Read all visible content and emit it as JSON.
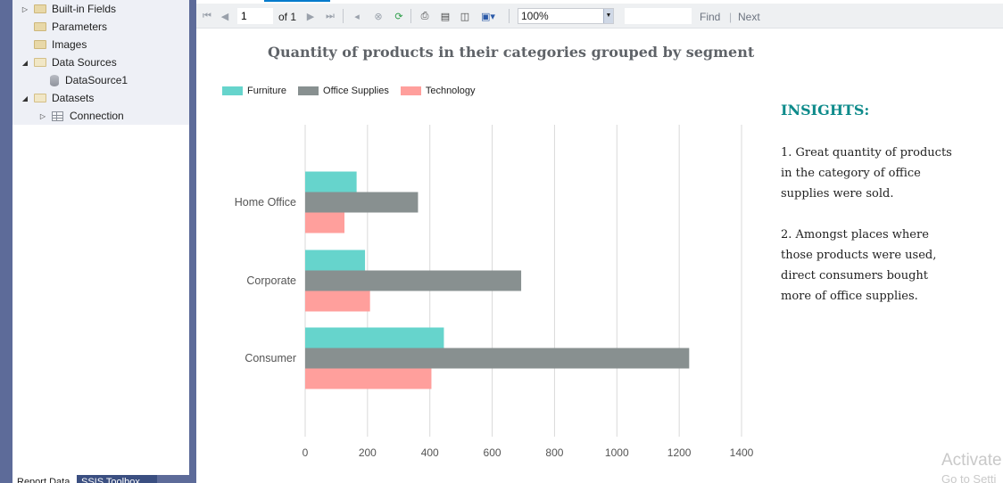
{
  "report_data_panel": {
    "items": [
      {
        "label": "Built-in Fields",
        "type": "folder",
        "expander": "▷"
      },
      {
        "label": "Parameters",
        "type": "folder",
        "expander": ""
      },
      {
        "label": "Images",
        "type": "folder",
        "expander": ""
      },
      {
        "label": "Data Sources",
        "type": "folder-open",
        "expander": "◢"
      },
      {
        "label": "DataSource1",
        "type": "datasource",
        "expander": ""
      },
      {
        "label": "Datasets",
        "type": "folder-open",
        "expander": "◢"
      },
      {
        "label": "Connection",
        "type": "dataset",
        "expander": "▷"
      }
    ]
  },
  "bottom_tabs": {
    "report_data": "Report Data",
    "ssis_toolbox": "SSIS Toolbox"
  },
  "toolbar": {
    "current_page": "1",
    "of_label": "of",
    "total_pages": "1",
    "zoom": "100%",
    "find_label": "Find",
    "separator": "|",
    "next_label": "Next",
    "icons": [
      "first-page-icon",
      "previous-page-icon",
      "next-page-icon",
      "last-page-icon",
      "back-icon",
      "stop-icon",
      "refresh-icon",
      "print-icon",
      "print-layout-icon",
      "page-setup-icon",
      "export-icon"
    ]
  },
  "report": {
    "title": "Quantity of products in their categories grouped by segment",
    "insights_title": "INSIGHTS:",
    "insights": [
      "1. Great quantity of products in the category of office supplies were sold.",
      "2. Amongst places where those products were used, direct consumers bought more of office supplies."
    ]
  },
  "chart_data": {
    "type": "bar",
    "orientation": "horizontal",
    "title": "Quantity of products in their categories grouped by segment",
    "categories": [
      "Home Office",
      "Corporate",
      "Consumer"
    ],
    "series": [
      {
        "name": "Furniture",
        "color": "#66d4cc",
        "values": [
          165,
          192,
          445
        ]
      },
      {
        "name": "Office Supplies",
        "color": "#889090",
        "values": [
          362,
          693,
          1232
        ]
      },
      {
        "name": "Technology",
        "color": "#ff9f9c",
        "values": [
          126,
          208,
          405
        ]
      }
    ],
    "xlim": [
      0,
      1400
    ],
    "xticks": [
      0,
      200,
      400,
      600,
      800,
      1000,
      1200,
      1400
    ],
    "xlabel": "",
    "ylabel": "",
    "grid": "vertical",
    "legend_position": "top-left"
  },
  "watermark": {
    "line1": "Activate",
    "line2": "Go to Setti"
  }
}
